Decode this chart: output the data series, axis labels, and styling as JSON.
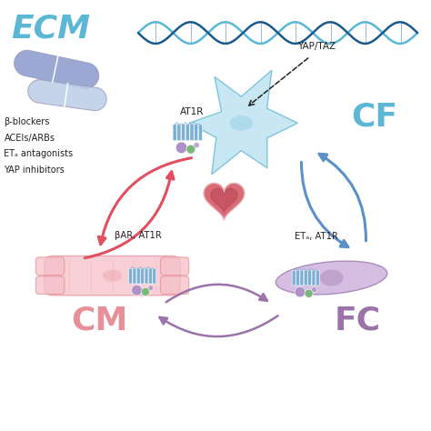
{
  "bg_color": "#ffffff",
  "ecm_text": "ECM",
  "ecm_color": "#5bb8d4",
  "cf_text": "CF",
  "cf_color": "#5bb8d4",
  "cm_text": "CM",
  "cm_color": "#e8909a",
  "fc_text": "FC",
  "fc_color": "#9b72aa",
  "at1r_top_text": "AT1R",
  "yap_taz_text": "YAP/TAZ",
  "bar_at1r_text": "βAR, AT1R",
  "eta_at1r_text": "ETₐ, AT1R",
  "drug_text_lines": [
    "β-blockers",
    "ACEIs/ARBs",
    "ETₐ antagonists",
    "YAP inhibitors"
  ],
  "cf_cell_color": "#b8dff0",
  "cf_cell_edge": "#5bb8d4",
  "cm_cell_color": "#f5c0c8",
  "cm_cell_edge": "#e8909a",
  "fc_cell_color": "#c8a8d8",
  "fc_cell_edge": "#9b72aa",
  "heart_outer": "#d4606a",
  "heart_inner": "#b84050",
  "arrow_red": "#e05060",
  "arrow_blue": "#5b90c8",
  "arrow_purple": "#9b72aa",
  "dna_color1": "#5bb8d4",
  "dna_color2": "#1a5a8a",
  "receptor_blue": "#7bafd4",
  "receptor_purple": "#b090c8",
  "receptor_green": "#7ab87a",
  "pill1_color": "#8899cc",
  "pill2_color": "#bbcce8",
  "text_color": "#222222"
}
